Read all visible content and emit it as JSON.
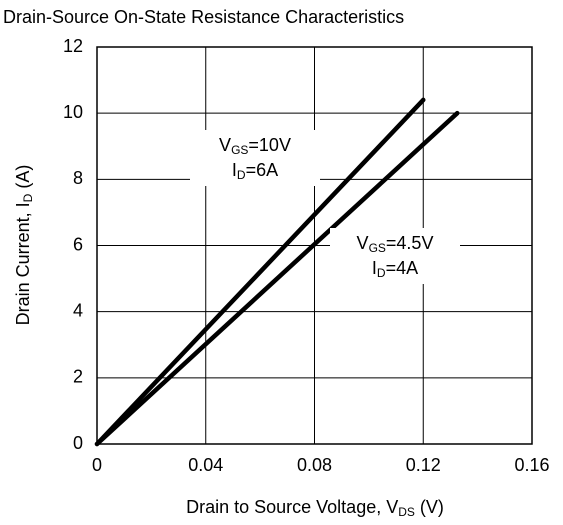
{
  "chart_data": {
    "type": "line",
    "title": "Drain-Source On-State Resistance  Characteristics",
    "x_label": [
      "Drain to Source Voltage, V",
      "DS",
      " (V)"
    ],
    "y_label": [
      "Drain Current, I",
      "D",
      " (A)"
    ],
    "series": [
      {
        "color": "#000000",
        "x": [
          0,
          0.12
        ],
        "values": [
          0,
          10.4
        ]
      },
      {
        "color": "#000000",
        "x": [
          0,
          0.1325
        ],
        "values": [
          0,
          10
        ]
      }
    ],
    "annotations": [
      {
        "lines": [
          [
            "V",
            "GS",
            "=10V"
          ],
          [
            "I",
            "D",
            "=6A"
          ]
        ]
      },
      {
        "lines": [
          [
            "V",
            "GS",
            "=4.5V"
          ],
          [
            "I",
            "D",
            "=4A"
          ]
        ]
      }
    ],
    "xlim": [
      0,
      0.16
    ],
    "xticks": [
      0,
      0.04,
      0.08,
      0.12,
      0.16
    ],
    "ylim": [
      0,
      12
    ],
    "yticks": [
      0,
      2,
      4,
      6,
      8,
      10,
      12
    ],
    "grid": true
  }
}
